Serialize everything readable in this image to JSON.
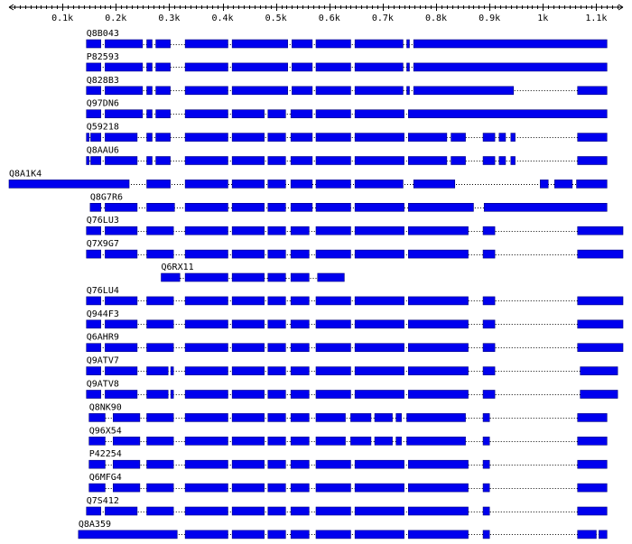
{
  "axis": {
    "min": 0,
    "max": 1150,
    "ticks": [
      {
        "value": 100,
        "label": "0.1k"
      },
      {
        "value": 200,
        "label": "0.2k"
      },
      {
        "value": 300,
        "label": "0.3k"
      },
      {
        "value": 400,
        "label": "0.4k"
      },
      {
        "value": 500,
        "label": "0.5k"
      },
      {
        "value": 600,
        "label": "0.6k"
      },
      {
        "value": 700,
        "label": "0.7k"
      },
      {
        "value": 800,
        "label": "0.8k"
      },
      {
        "value": 900,
        "label": "0.9k"
      },
      {
        "value": 1000,
        "label": "1k"
      },
      {
        "value": 1100,
        "label": "1.1k"
      }
    ]
  },
  "colors": {
    "segment": "#0000ee",
    "line": "#000000"
  },
  "sequences": [
    {
      "id": "Q8B043",
      "start": 145,
      "end": 1120,
      "segments": [
        [
          145,
          172
        ],
        [
          180,
          250
        ],
        [
          258,
          268
        ],
        [
          275,
          302
        ],
        [
          330,
          410
        ],
        [
          418,
          522
        ],
        [
          530,
          568
        ],
        [
          575,
          640
        ],
        [
          648,
          738
        ],
        [
          745,
          750
        ],
        [
          758,
          1120
        ]
      ]
    },
    {
      "id": "P82593",
      "start": 145,
      "end": 1120,
      "segments": [
        [
          145,
          172
        ],
        [
          180,
          250
        ],
        [
          258,
          268
        ],
        [
          275,
          302
        ],
        [
          330,
          410
        ],
        [
          418,
          522
        ],
        [
          530,
          568
        ],
        [
          575,
          640
        ],
        [
          648,
          738
        ],
        [
          745,
          750
        ],
        [
          758,
          1120
        ]
      ]
    },
    {
      "id": "Q828B3",
      "start": 145,
      "end": 1120,
      "segments": [
        [
          145,
          172
        ],
        [
          180,
          250
        ],
        [
          258,
          268
        ],
        [
          275,
          302
        ],
        [
          330,
          410
        ],
        [
          418,
          522
        ],
        [
          530,
          568
        ],
        [
          575,
          640
        ],
        [
          648,
          738
        ],
        [
          745,
          750
        ],
        [
          758,
          945
        ],
        [
          1065,
          1120
        ]
      ]
    },
    {
      "id": "Q97DN6",
      "start": 145,
      "end": 1120,
      "segments": [
        [
          145,
          172
        ],
        [
          180,
          250
        ],
        [
          258,
          268
        ],
        [
          275,
          302
        ],
        [
          330,
          410
        ],
        [
          418,
          478
        ],
        [
          485,
          518
        ],
        [
          528,
          568
        ],
        [
          575,
          640
        ],
        [
          648,
          740
        ],
        [
          748,
          1120
        ]
      ]
    },
    {
      "id": "Q59218",
      "start": 145,
      "end": 1120,
      "segments": [
        [
          145,
          150
        ],
        [
          153,
          172
        ],
        [
          180,
          240
        ],
        [
          258,
          268
        ],
        [
          275,
          302
        ],
        [
          330,
          410
        ],
        [
          418,
          478
        ],
        [
          485,
          518
        ],
        [
          528,
          568
        ],
        [
          575,
          640
        ],
        [
          648,
          740
        ],
        [
          748,
          820
        ],
        [
          828,
          855
        ],
        [
          888,
          910
        ],
        [
          918,
          930
        ],
        [
          940,
          948
        ],
        [
          1065,
          1120
        ]
      ]
    },
    {
      "id": "Q8AAU6",
      "start": 145,
      "end": 1120,
      "segments": [
        [
          145,
          150
        ],
        [
          153,
          172
        ],
        [
          180,
          240
        ],
        [
          258,
          268
        ],
        [
          275,
          302
        ],
        [
          330,
          410
        ],
        [
          418,
          478
        ],
        [
          485,
          518
        ],
        [
          528,
          568
        ],
        [
          575,
          640
        ],
        [
          648,
          740
        ],
        [
          748,
          820
        ],
        [
          828,
          855
        ],
        [
          888,
          910
        ],
        [
          918,
          930
        ],
        [
          940,
          948
        ],
        [
          1065,
          1120
        ]
      ]
    },
    {
      "id": "Q8A1K4",
      "start": 0,
      "end": 1120,
      "segments": [
        [
          0,
          225
        ],
        [
          258,
          302
        ],
        [
          330,
          410
        ],
        [
          418,
          478
        ],
        [
          485,
          518
        ],
        [
          528,
          568
        ],
        [
          575,
          640
        ],
        [
          648,
          738
        ],
        [
          758,
          835
        ],
        [
          995,
          1010
        ],
        [
          1022,
          1055
        ],
        [
          1063,
          1120
        ]
      ]
    },
    {
      "id": "Q8G7R6",
      "start": 152,
      "end": 1120,
      "segments": [
        [
          152,
          172
        ],
        [
          180,
          240
        ],
        [
          258,
          310
        ],
        [
          330,
          410
        ],
        [
          418,
          478
        ],
        [
          485,
          518
        ],
        [
          528,
          568
        ],
        [
          575,
          640
        ],
        [
          648,
          740
        ],
        [
          748,
          870
        ],
        [
          890,
          1120
        ]
      ]
    },
    {
      "id": "Q76LU3",
      "start": 145,
      "end": 1150,
      "segments": [
        [
          145,
          172
        ],
        [
          180,
          240
        ],
        [
          258,
          308
        ],
        [
          330,
          410
        ],
        [
          418,
          478
        ],
        [
          485,
          518
        ],
        [
          528,
          562
        ],
        [
          575,
          640
        ],
        [
          648,
          740
        ],
        [
          748,
          860
        ],
        [
          888,
          910
        ],
        [
          1065,
          1150
        ]
      ]
    },
    {
      "id": "Q7X9G7",
      "start": 145,
      "end": 1150,
      "segments": [
        [
          145,
          172
        ],
        [
          180,
          240
        ],
        [
          258,
          308
        ],
        [
          330,
          410
        ],
        [
          418,
          478
        ],
        [
          485,
          518
        ],
        [
          528,
          562
        ],
        [
          575,
          640
        ],
        [
          648,
          740
        ],
        [
          748,
          860
        ],
        [
          888,
          910
        ],
        [
          1065,
          1150
        ]
      ]
    },
    {
      "id": "Q6RX11",
      "start": 285,
      "end": 628,
      "segments": [
        [
          285,
          320
        ],
        [
          330,
          410
        ],
        [
          418,
          478
        ],
        [
          485,
          518
        ],
        [
          528,
          562
        ],
        [
          578,
          628
        ]
      ]
    },
    {
      "id": "Q76LU4",
      "start": 145,
      "end": 1150,
      "segments": [
        [
          145,
          172
        ],
        [
          180,
          240
        ],
        [
          258,
          308
        ],
        [
          330,
          410
        ],
        [
          418,
          478
        ],
        [
          485,
          518
        ],
        [
          528,
          562
        ],
        [
          575,
          640
        ],
        [
          648,
          740
        ],
        [
          748,
          860
        ],
        [
          888,
          910
        ],
        [
          1065,
          1150
        ]
      ]
    },
    {
      "id": "Q944F3",
      "start": 145,
      "end": 1150,
      "segments": [
        [
          145,
          172
        ],
        [
          180,
          240
        ],
        [
          258,
          308
        ],
        [
          330,
          410
        ],
        [
          418,
          478
        ],
        [
          485,
          518
        ],
        [
          528,
          562
        ],
        [
          575,
          640
        ],
        [
          648,
          740
        ],
        [
          748,
          860
        ],
        [
          888,
          910
        ],
        [
          1065,
          1150
        ]
      ]
    },
    {
      "id": "Q6AHR9",
      "start": 145,
      "end": 1150,
      "segments": [
        [
          145,
          172
        ],
        [
          180,
          240
        ],
        [
          258,
          308
        ],
        [
          330,
          410
        ],
        [
          418,
          478
        ],
        [
          485,
          518
        ],
        [
          528,
          562
        ],
        [
          575,
          640
        ],
        [
          648,
          740
        ],
        [
          748,
          860
        ],
        [
          888,
          910
        ],
        [
          1065,
          1150
        ]
      ]
    },
    {
      "id": "Q9ATV7",
      "start": 145,
      "end": 1140,
      "segments": [
        [
          145,
          172
        ],
        [
          180,
          240
        ],
        [
          258,
          298
        ],
        [
          303,
          308
        ],
        [
          330,
          410
        ],
        [
          418,
          478
        ],
        [
          485,
          518
        ],
        [
          528,
          562
        ],
        [
          575,
          640
        ],
        [
          648,
          740
        ],
        [
          748,
          860
        ],
        [
          888,
          910
        ],
        [
          1070,
          1140
        ]
      ]
    },
    {
      "id": "Q9ATV8",
      "start": 145,
      "end": 1140,
      "segments": [
        [
          145,
          172
        ],
        [
          180,
          240
        ],
        [
          258,
          298
        ],
        [
          303,
          308
        ],
        [
          330,
          410
        ],
        [
          418,
          478
        ],
        [
          485,
          518
        ],
        [
          528,
          562
        ],
        [
          575,
          640
        ],
        [
          648,
          740
        ],
        [
          748,
          860
        ],
        [
          888,
          910
        ],
        [
          1070,
          1140
        ]
      ]
    },
    {
      "id": "Q8NK90",
      "start": 150,
      "end": 1120,
      "segments": [
        [
          150,
          180
        ],
        [
          195,
          245
        ],
        [
          258,
          308
        ],
        [
          330,
          410
        ],
        [
          418,
          478
        ],
        [
          485,
          518
        ],
        [
          528,
          562
        ],
        [
          575,
          630
        ],
        [
          640,
          678
        ],
        [
          685,
          718
        ],
        [
          725,
          735
        ],
        [
          745,
          855
        ],
        [
          888,
          900
        ],
        [
          1065,
          1120
        ]
      ]
    },
    {
      "id": "Q96X54",
      "start": 150,
      "end": 1120,
      "segments": [
        [
          150,
          180
        ],
        [
          195,
          245
        ],
        [
          258,
          308
        ],
        [
          330,
          410
        ],
        [
          418,
          478
        ],
        [
          485,
          518
        ],
        [
          528,
          562
        ],
        [
          575,
          630
        ],
        [
          640,
          678
        ],
        [
          685,
          718
        ],
        [
          725,
          735
        ],
        [
          745,
          855
        ],
        [
          888,
          900
        ],
        [
          1065,
          1120
        ]
      ]
    },
    {
      "id": "P42254",
      "start": 150,
      "end": 1120,
      "segments": [
        [
          150,
          180
        ],
        [
          195,
          245
        ],
        [
          258,
          308
        ],
        [
          330,
          410
        ],
        [
          418,
          478
        ],
        [
          485,
          518
        ],
        [
          528,
          562
        ],
        [
          575,
          640
        ],
        [
          648,
          740
        ],
        [
          748,
          860
        ],
        [
          888,
          900
        ],
        [
          1065,
          1120
        ]
      ]
    },
    {
      "id": "Q6MFG4",
      "start": 150,
      "end": 1120,
      "segments": [
        [
          150,
          180
        ],
        [
          195,
          245
        ],
        [
          258,
          308
        ],
        [
          330,
          410
        ],
        [
          418,
          478
        ],
        [
          485,
          518
        ],
        [
          528,
          562
        ],
        [
          575,
          640
        ],
        [
          648,
          740
        ],
        [
          748,
          860
        ],
        [
          888,
          900
        ],
        [
          1065,
          1120
        ]
      ]
    },
    {
      "id": "Q7S412",
      "start": 145,
      "end": 1120,
      "segments": [
        [
          145,
          172
        ],
        [
          180,
          240
        ],
        [
          258,
          308
        ],
        [
          330,
          410
        ],
        [
          418,
          478
        ],
        [
          485,
          518
        ],
        [
          528,
          562
        ],
        [
          575,
          640
        ],
        [
          648,
          740
        ],
        [
          748,
          860
        ],
        [
          888,
          900
        ],
        [
          1065,
          1120
        ]
      ]
    },
    {
      "id": "Q8A359",
      "start": 130,
      "end": 1120,
      "segments": [
        [
          130,
          315
        ],
        [
          330,
          410
        ],
        [
          418,
          478
        ],
        [
          485,
          518
        ],
        [
          528,
          562
        ],
        [
          575,
          640
        ],
        [
          648,
          740
        ],
        [
          748,
          860
        ],
        [
          888,
          900
        ],
        [
          1065,
          1100
        ],
        [
          1105,
          1120
        ]
      ]
    }
  ]
}
